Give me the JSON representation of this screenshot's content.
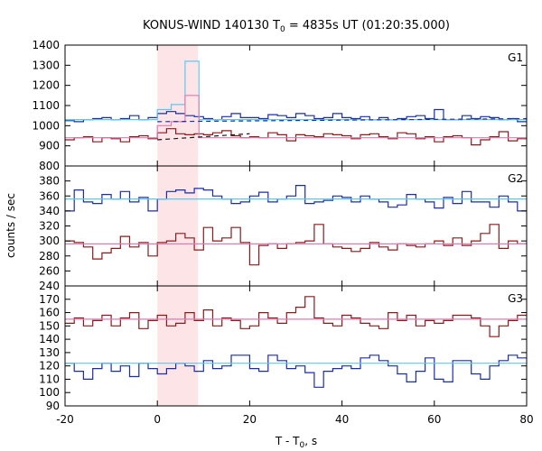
{
  "chart_data": {
    "type": "line",
    "title": {
      "main": "KONUS-WIND 140130 T",
      "sub": "0",
      "rest": " = 4835s UT (01:20:35.000)"
    },
    "xlabel": {
      "main": "T - T",
      "sub": "0",
      "rest": ", s"
    },
    "ylabel": "counts / sec",
    "xlim": [
      -20,
      80
    ],
    "x_ticks": [
      -20,
      0,
      20,
      40,
      60,
      80
    ],
    "grid": false,
    "shaded_interval": [
      0,
      8.8
    ],
    "panels": [
      {
        "name": "G1",
        "ylim": [
          800,
          1400
        ],
        "y_ticks": [
          800,
          900,
          1000,
          1100,
          1200,
          1300,
          1400
        ],
        "series": [
          {
            "color": "#1a2ea8",
            "bin_edges": [
              -20,
              -18,
              -16,
              -14,
              -12,
              -10,
              -8,
              -6,
              -4,
              -2,
              0,
              2,
              4,
              6,
              8,
              10,
              12,
              14,
              16,
              18,
              20,
              22,
              24,
              26,
              28,
              30,
              32,
              34,
              36,
              38,
              40,
              42,
              44,
              46,
              48,
              50,
              52,
              54,
              56,
              58,
              60,
              62,
              64,
              66,
              68,
              70,
              72,
              74,
              76,
              78,
              80
            ],
            "values": [
              1025,
              1020,
              1030,
              1035,
              1040,
              1030,
              1035,
              1050,
              1030,
              1040,
              1060,
              1070,
              1060,
              1050,
              1045,
              1035,
              1030,
              1045,
              1060,
              1040,
              1040,
              1035,
              1055,
              1050,
              1040,
              1060,
              1050,
              1035,
              1040,
              1060,
              1040,
              1035,
              1045,
              1030,
              1040,
              1030,
              1035,
              1045,
              1050,
              1035,
              1080,
              1030,
              1030,
              1050,
              1035,
              1045,
              1040,
              1030,
              1035,
              1020
            ]
          },
          {
            "color": "#8b1a1a",
            "bin_edges": [
              -20,
              -18,
              -16,
              -14,
              -12,
              -10,
              -8,
              -6,
              -4,
              -2,
              0,
              2,
              4,
              6,
              8,
              10,
              12,
              14,
              16,
              18,
              20,
              22,
              24,
              26,
              28,
              30,
              32,
              34,
              36,
              38,
              40,
              42,
              44,
              46,
              48,
              50,
              52,
              54,
              56,
              58,
              60,
              62,
              64,
              66,
              68,
              70,
              72,
              74,
              76,
              78,
              80
            ],
            "values": [
              930,
              940,
              945,
              920,
              940,
              935,
              920,
              945,
              950,
              935,
              965,
              985,
              960,
              955,
              960,
              955,
              965,
              975,
              950,
              940,
              945,
              940,
              965,
              955,
              925,
              955,
              950,
              945,
              960,
              955,
              950,
              935,
              955,
              960,
              945,
              935,
              965,
              960,
              935,
              945,
              920,
              945,
              950,
              940,
              905,
              930,
              945,
              970,
              925,
              935
            ]
          },
          {
            "color": "#5bc8f0",
            "bin_edges": [
              -20,
              0,
              3,
              6,
              9,
              80
            ],
            "values": [
              1030,
              1080,
              1105,
              1320,
              1030
            ]
          },
          {
            "color": "#e07ab0",
            "bin_edges": [
              -20,
              0,
              3,
              6,
              9,
              80
            ],
            "values": [
              940,
              1000,
              1020,
              1150,
              940
            ]
          }
        ],
        "dashed_lines": [
          {
            "color": "#1a2ea8",
            "from": [
              0,
              1020
            ],
            "to": [
              80,
              1035
            ]
          },
          {
            "color": "#1a1a1a",
            "from": [
              0,
              930
            ],
            "to": [
              20,
              960
            ]
          }
        ]
      },
      {
        "name": "G2",
        "ylim": [
          240,
          400
        ],
        "y_ticks": [
          240,
          260,
          280,
          300,
          320,
          340,
          360,
          380
        ],
        "series": [
          {
            "color": "#1a2ea8",
            "bin_edges": [
              -20,
              -18,
              -16,
              -14,
              -12,
              -10,
              -8,
              -6,
              -4,
              -2,
              0,
              2,
              4,
              6,
              8,
              10,
              12,
              14,
              16,
              18,
              20,
              22,
              24,
              26,
              28,
              30,
              32,
              34,
              36,
              38,
              40,
              42,
              44,
              46,
              48,
              50,
              52,
              54,
              56,
              58,
              60,
              62,
              64,
              66,
              68,
              70,
              72,
              74,
              76,
              78,
              80
            ],
            "values": [
              340,
              368,
              352,
              350,
              362,
              356,
              366,
              352,
              358,
              340,
              356,
              366,
              368,
              364,
              370,
              368,
              360,
              356,
              350,
              352,
              360,
              365,
              352,
              356,
              360,
              374,
              350,
              352,
              354,
              360,
              358,
              352,
              360,
              356,
              352,
              345,
              348,
              362,
              356,
              352,
              344,
              358,
              350,
              366,
              352,
              352,
              345,
              360,
              352,
              340
            ]
          },
          {
            "color": "#8b1a1a",
            "bin_edges": [
              -20,
              -18,
              -16,
              -14,
              -12,
              -10,
              -8,
              -6,
              -4,
              -2,
              0,
              2,
              4,
              6,
              8,
              10,
              12,
              14,
              16,
              18,
              20,
              22,
              24,
              26,
              28,
              30,
              32,
              34,
              36,
              38,
              40,
              42,
              44,
              46,
              48,
              50,
              52,
              54,
              56,
              58,
              60,
              62,
              64,
              66,
              68,
              70,
              72,
              74,
              76,
              78,
              80
            ],
            "values": [
              300,
              298,
              292,
              276,
              284,
              290,
              306,
              292,
              298,
              280,
              298,
              300,
              310,
              304,
              288,
              318,
              300,
              304,
              318,
              298,
              268,
              294,
              296,
              290,
              296,
              298,
              300,
              322,
              296,
              292,
              290,
              286,
              290,
              298,
              292,
              288,
              296,
              294,
              292,
              296,
              300,
              294,
              304,
              294,
              300,
              310,
              322,
              290,
              300,
              296
            ]
          },
          {
            "color": "#5bc8f0",
            "bin_edges": [
              -20,
              80
            ],
            "values": [
              356
            ]
          },
          {
            "color": "#e07ab0",
            "bin_edges": [
              -20,
              80
            ],
            "values": [
              296
            ]
          }
        ]
      },
      {
        "name": "G3",
        "ylim": [
          90,
          180
        ],
        "y_ticks": [
          90,
          100,
          110,
          120,
          130,
          140,
          150,
          160,
          170
        ],
        "series": [
          {
            "color": "#1a2ea8",
            "bin_edges": [
              -20,
              -18,
              -16,
              -14,
              -12,
              -10,
              -8,
              -6,
              -4,
              -2,
              0,
              2,
              4,
              6,
              8,
              10,
              12,
              14,
              16,
              18,
              20,
              22,
              24,
              26,
              28,
              30,
              32,
              34,
              36,
              38,
              40,
              42,
              44,
              46,
              48,
              50,
              52,
              54,
              56,
              58,
              60,
              62,
              64,
              66,
              68,
              70,
              72,
              74,
              76,
              78,
              80
            ],
            "values": [
              122,
              116,
              110,
              118,
              122,
              116,
              120,
              112,
              122,
              118,
              114,
              118,
              122,
              120,
              116,
              124,
              118,
              120,
              128,
              128,
              118,
              116,
              128,
              124,
              118,
              120,
              115,
              104,
              116,
              118,
              120,
              118,
              126,
              128,
              124,
              120,
              114,
              108,
              116,
              126,
              110,
              108,
              124,
              124,
              114,
              110,
              120,
              124,
              128,
              126
            ]
          },
          {
            "color": "#8b1a1a",
            "bin_edges": [
              -20,
              -18,
              -16,
              -14,
              -12,
              -10,
              -8,
              -6,
              -4,
              -2,
              0,
              2,
              4,
              6,
              8,
              10,
              12,
              14,
              16,
              18,
              20,
              22,
              24,
              26,
              28,
              30,
              32,
              34,
              36,
              38,
              40,
              42,
              44,
              46,
              48,
              50,
              52,
              54,
              56,
              58,
              60,
              62,
              64,
              66,
              68,
              70,
              72,
              74,
              76,
              78,
              80
            ],
            "values": [
              152,
              156,
              150,
              154,
              158,
              150,
              156,
              160,
              148,
              154,
              158,
              150,
              152,
              160,
              154,
              162,
              150,
              156,
              154,
              148,
              150,
              160,
              156,
              152,
              160,
              164,
              172,
              156,
              152,
              150,
              158,
              156,
              152,
              150,
              148,
              160,
              154,
              158,
              150,
              154,
              152,
              154,
              158,
              158,
              156,
              150,
              142,
              150,
              154,
              158
            ]
          },
          {
            "color": "#5bc8f0",
            "bin_edges": [
              -20,
              80
            ],
            "values": [
              122
            ]
          },
          {
            "color": "#e07ab0",
            "bin_edges": [
              -20,
              80
            ],
            "values": [
              155
            ]
          }
        ]
      }
    ]
  }
}
